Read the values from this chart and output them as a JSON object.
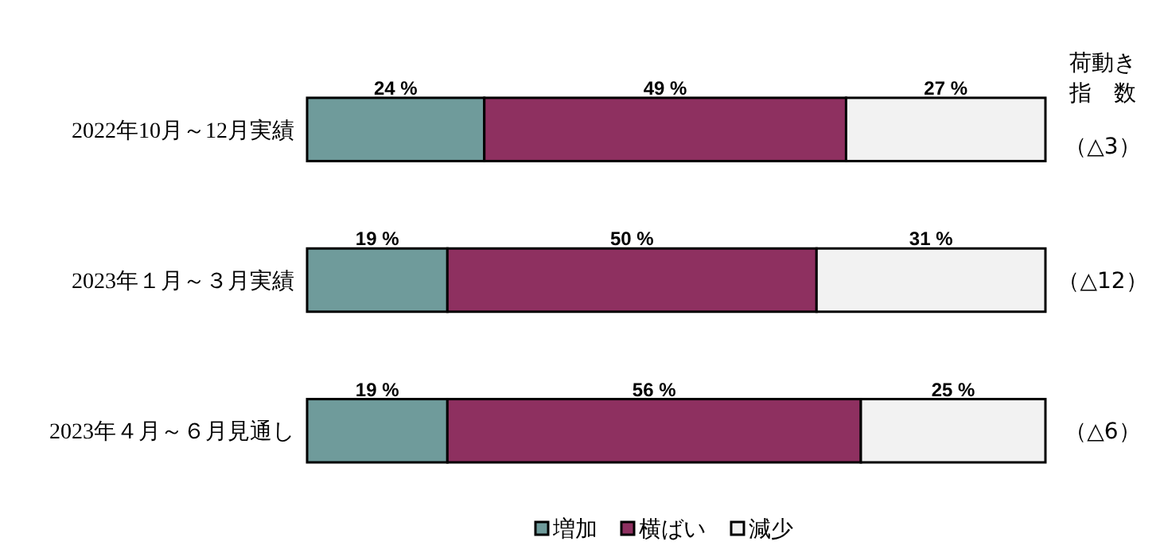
{
  "chart_data": {
    "type": "bar",
    "orientation": "horizontal",
    "stacked": true,
    "categories": [
      "2022年10月～12月実績",
      "2023年１月～３月実績",
      "2023年４月～６月見通し"
    ],
    "tick_labels": "y",
    "legend": "bottom",
    "series": [
      {
        "name": "増加",
        "color": "#6f9b9b",
        "values": [
          24,
          19,
          19
        ],
        "value_labels": [
          "24 %",
          "19 %",
          "19 %"
        ]
      },
      {
        "name": "横ばい",
        "color": "#8e3060",
        "values": [
          49,
          50,
          56
        ],
        "value_labels": [
          "49 %",
          "50 %",
          "56 %"
        ]
      },
      {
        "name": "減少",
        "color": "#f2f2f2",
        "values": [
          27,
          31,
          25
        ],
        "value_labels": [
          "27 %",
          "31 %",
          "25 %"
        ]
      }
    ],
    "annotations": [
      "荷動き指数",
      "（△3）",
      "（△12）",
      "（△6）"
    ]
  }
}
